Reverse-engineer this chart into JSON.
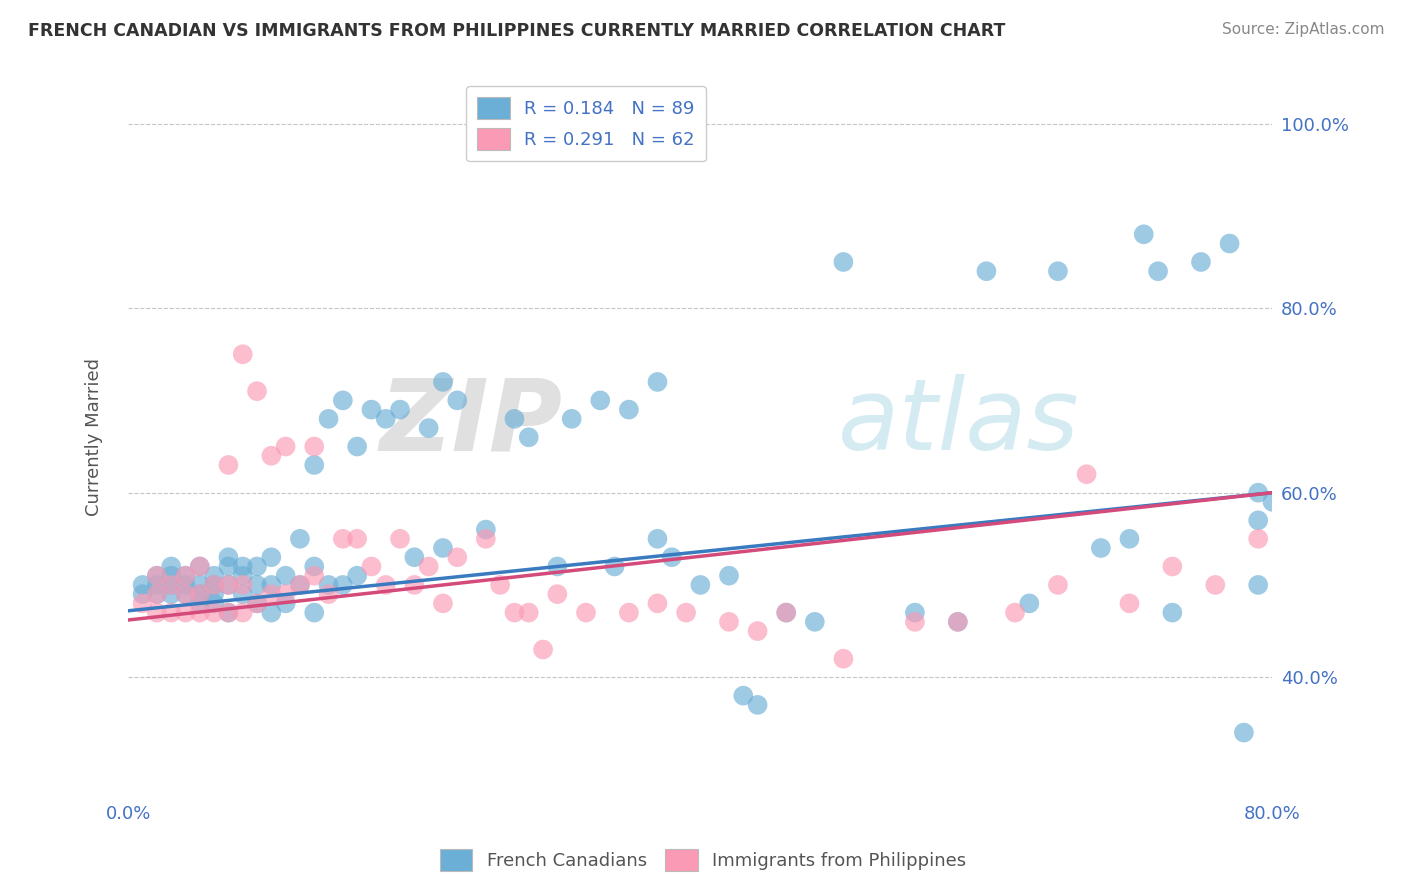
{
  "title": "FRENCH CANADIAN VS IMMIGRANTS FROM PHILIPPINES CURRENTLY MARRIED CORRELATION CHART",
  "source": "Source: ZipAtlas.com",
  "ylabel": "Currently Married",
  "xlim": [
    0.0,
    0.8
  ],
  "ylim": [
    0.27,
    1.05
  ],
  "yticks": [
    0.4,
    0.6,
    0.8,
    1.0
  ],
  "ytick_labels": [
    "40.0%",
    "60.0%",
    "80.0%",
    "100.0%"
  ],
  "xticks": [
    0.0,
    0.8
  ],
  "xtick_labels": [
    "0.0%",
    "80.0%"
  ],
  "r1": 0.184,
  "n1": 89,
  "r2": 0.291,
  "n2": 62,
  "color1": "#6baed6",
  "color2": "#fb9ab4",
  "trendcolor1": "#3a7abf",
  "trendcolor2": "#d44a7a",
  "legend1": "French Canadians",
  "legend2": "Immigrants from Philippines",
  "blue_x": [
    0.01,
    0.01,
    0.02,
    0.02,
    0.02,
    0.03,
    0.03,
    0.03,
    0.03,
    0.04,
    0.04,
    0.04,
    0.05,
    0.05,
    0.05,
    0.05,
    0.06,
    0.06,
    0.06,
    0.06,
    0.07,
    0.07,
    0.07,
    0.07,
    0.08,
    0.08,
    0.08,
    0.09,
    0.09,
    0.09,
    0.1,
    0.1,
    0.1,
    0.11,
    0.11,
    0.12,
    0.12,
    0.13,
    0.13,
    0.13,
    0.14,
    0.14,
    0.15,
    0.15,
    0.16,
    0.16,
    0.17,
    0.18,
    0.19,
    0.2,
    0.21,
    0.22,
    0.22,
    0.23,
    0.25,
    0.27,
    0.28,
    0.3,
    0.31,
    0.33,
    0.34,
    0.35,
    0.37,
    0.37,
    0.38,
    0.4,
    0.42,
    0.43,
    0.44,
    0.46,
    0.48,
    0.5,
    0.55,
    0.58,
    0.6,
    0.63,
    0.65,
    0.68,
    0.7,
    0.71,
    0.72,
    0.73,
    0.75,
    0.77,
    0.78,
    0.79,
    0.79,
    0.79,
    0.8
  ],
  "blue_y": [
    0.49,
    0.5,
    0.49,
    0.5,
    0.51,
    0.49,
    0.5,
    0.51,
    0.52,
    0.49,
    0.5,
    0.51,
    0.48,
    0.49,
    0.5,
    0.52,
    0.48,
    0.49,
    0.5,
    0.51,
    0.47,
    0.5,
    0.52,
    0.53,
    0.49,
    0.51,
    0.52,
    0.48,
    0.5,
    0.52,
    0.47,
    0.5,
    0.53,
    0.48,
    0.51,
    0.5,
    0.55,
    0.47,
    0.52,
    0.63,
    0.5,
    0.68,
    0.5,
    0.7,
    0.51,
    0.65,
    0.69,
    0.68,
    0.69,
    0.53,
    0.67,
    0.54,
    0.72,
    0.7,
    0.56,
    0.68,
    0.66,
    0.52,
    0.68,
    0.7,
    0.52,
    0.69,
    0.55,
    0.72,
    0.53,
    0.5,
    0.51,
    0.38,
    0.37,
    0.47,
    0.46,
    0.85,
    0.47,
    0.46,
    0.84,
    0.48,
    0.84,
    0.54,
    0.55,
    0.88,
    0.84,
    0.47,
    0.85,
    0.87,
    0.34,
    0.5,
    0.57,
    0.6,
    0.59
  ],
  "pink_x": [
    0.01,
    0.02,
    0.02,
    0.02,
    0.03,
    0.03,
    0.04,
    0.04,
    0.04,
    0.05,
    0.05,
    0.05,
    0.06,
    0.06,
    0.07,
    0.07,
    0.07,
    0.08,
    0.08,
    0.08,
    0.09,
    0.09,
    0.1,
    0.1,
    0.11,
    0.11,
    0.12,
    0.13,
    0.13,
    0.14,
    0.15,
    0.16,
    0.17,
    0.18,
    0.19,
    0.2,
    0.21,
    0.22,
    0.23,
    0.25,
    0.26,
    0.27,
    0.28,
    0.29,
    0.3,
    0.32,
    0.35,
    0.37,
    0.39,
    0.42,
    0.44,
    0.46,
    0.5,
    0.55,
    0.58,
    0.62,
    0.65,
    0.67,
    0.7,
    0.73,
    0.76,
    0.79
  ],
  "pink_y": [
    0.48,
    0.47,
    0.49,
    0.51,
    0.47,
    0.5,
    0.47,
    0.49,
    0.51,
    0.47,
    0.49,
    0.52,
    0.47,
    0.5,
    0.47,
    0.5,
    0.63,
    0.47,
    0.5,
    0.75,
    0.48,
    0.71,
    0.49,
    0.64,
    0.49,
    0.65,
    0.5,
    0.65,
    0.51,
    0.49,
    0.55,
    0.55,
    0.52,
    0.5,
    0.55,
    0.5,
    0.52,
    0.48,
    0.53,
    0.55,
    0.5,
    0.47,
    0.47,
    0.43,
    0.49,
    0.47,
    0.47,
    0.48,
    0.47,
    0.46,
    0.45,
    0.47,
    0.42,
    0.46,
    0.46,
    0.47,
    0.5,
    0.62,
    0.48,
    0.52,
    0.5,
    0.55
  ]
}
